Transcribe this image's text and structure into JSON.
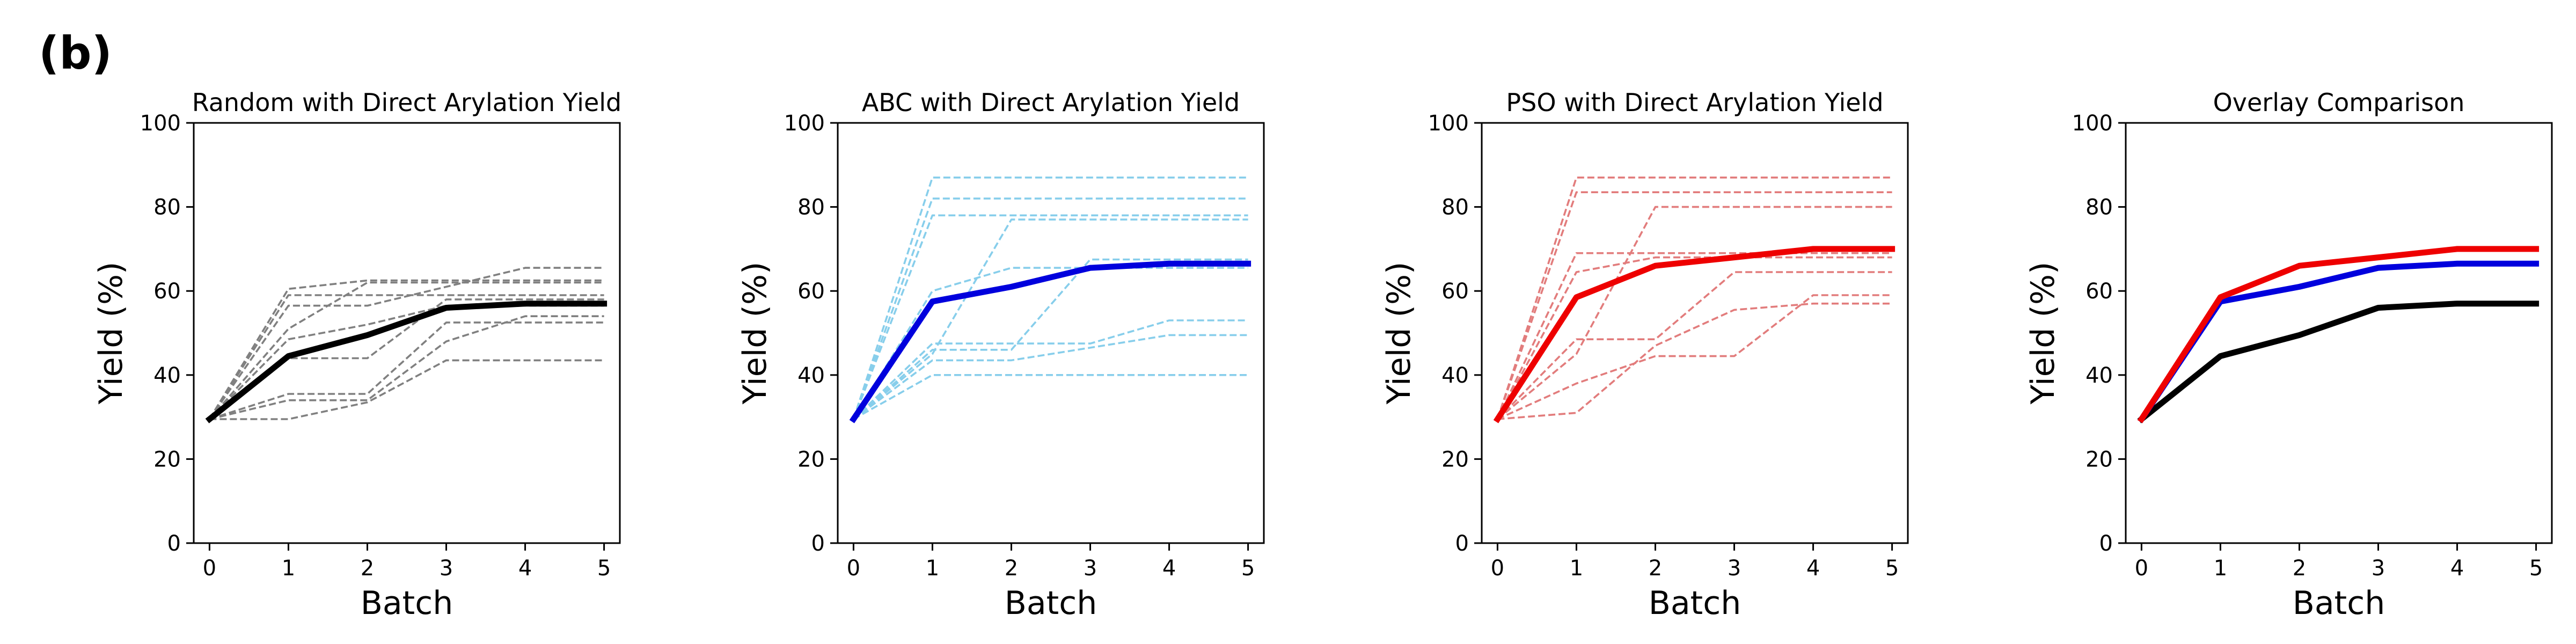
{
  "figure_label": "(b)",
  "chart_data": [
    {
      "type": "line",
      "title": "Random with Direct Arylation Yield",
      "xlabel": "Batch",
      "ylabel": "Yield (%)",
      "xlim": [
        -0.2,
        5.2
      ],
      "ylim": [
        0,
        100
      ],
      "xticks": [
        0,
        1,
        2,
        3,
        4,
        5
      ],
      "yticks": [
        0,
        20,
        40,
        60,
        80,
        100
      ],
      "x": [
        0,
        1,
        2,
        3,
        4,
        5
      ],
      "grid": false,
      "series": [
        {
          "style": "dashed",
          "color": "#808080",
          "values": [
            29.5,
            60.5,
            62.5,
            62.5,
            62.5,
            62.5
          ]
        },
        {
          "style": "dashed",
          "color": "#808080",
          "values": [
            29.5,
            59.0,
            59.0,
            59.0,
            59.0,
            59.0
          ]
        },
        {
          "style": "dashed",
          "color": "#808080",
          "values": [
            29.5,
            56.5,
            56.5,
            61.0,
            65.5,
            65.5
          ]
        },
        {
          "style": "dashed",
          "color": "#808080",
          "values": [
            29.5,
            51.0,
            62.0,
            62.0,
            62.0,
            62.0
          ]
        },
        {
          "style": "dashed",
          "color": "#808080",
          "values": [
            29.5,
            48.5,
            52.0,
            56.5,
            56.5,
            56.5
          ]
        },
        {
          "style": "dashed",
          "color": "#808080",
          "values": [
            29.5,
            44.0,
            44.0,
            58.0,
            58.0,
            58.0
          ]
        },
        {
          "style": "dashed",
          "color": "#808080",
          "values": [
            29.5,
            35.5,
            35.5,
            52.5,
            52.5,
            52.5
          ]
        },
        {
          "style": "dashed",
          "color": "#808080",
          "values": [
            29.5,
            34.0,
            34.0,
            48.0,
            54.0,
            54.0
          ]
        },
        {
          "style": "dashed",
          "color": "#808080",
          "values": [
            29.5,
            29.5,
            33.5,
            43.5,
            43.5,
            43.5
          ]
        },
        {
          "style": "solid",
          "color": "#000000",
          "values": [
            29.5,
            44.5,
            49.5,
            56.0,
            57.0,
            57.0
          ]
        }
      ]
    },
    {
      "type": "line",
      "title": "ABC with Direct Arylation Yield",
      "xlabel": "Batch",
      "ylabel": "Yield (%)",
      "xlim": [
        -0.2,
        5.2
      ],
      "ylim": [
        0,
        100
      ],
      "xticks": [
        0,
        1,
        2,
        3,
        4,
        5
      ],
      "yticks": [
        0,
        20,
        40,
        60,
        80,
        100
      ],
      "x": [
        0,
        1,
        2,
        3,
        4,
        5
      ],
      "grid": false,
      "series": [
        {
          "style": "dashed",
          "color": "#87ceeb",
          "values": [
            29.5,
            87.0,
            87.0,
            87.0,
            87.0,
            87.0
          ]
        },
        {
          "style": "dashed",
          "color": "#87ceeb",
          "values": [
            29.5,
            82.0,
            82.0,
            82.0,
            82.0,
            82.0
          ]
        },
        {
          "style": "dashed",
          "color": "#87ceeb",
          "values": [
            29.5,
            78.0,
            78.0,
            78.0,
            78.0,
            78.0
          ]
        },
        {
          "style": "dashed",
          "color": "#87ceeb",
          "values": [
            29.5,
            45.0,
            77.0,
            77.0,
            77.0,
            77.0
          ]
        },
        {
          "style": "dashed",
          "color": "#87ceeb",
          "values": [
            29.5,
            60.0,
            65.5,
            65.5,
            65.5,
            65.5
          ]
        },
        {
          "style": "dashed",
          "color": "#87ceeb",
          "values": [
            29.5,
            46.0,
            46.0,
            67.5,
            67.5,
            67.5
          ]
        },
        {
          "style": "dashed",
          "color": "#87ceeb",
          "values": [
            29.5,
            47.5,
            47.5,
            47.5,
            53.0,
            53.0
          ]
        },
        {
          "style": "dashed",
          "color": "#87ceeb",
          "values": [
            29.5,
            43.5,
            43.5,
            46.5,
            49.5,
            49.5
          ]
        },
        {
          "style": "dashed",
          "color": "#87ceeb",
          "values": [
            29.5,
            40.0,
            40.0,
            40.0,
            40.0,
            40.0
          ]
        },
        {
          "style": "solid",
          "color": "#0000dd",
          "values": [
            29.5,
            57.5,
            61.0,
            65.5,
            66.5,
            66.5
          ]
        }
      ]
    },
    {
      "type": "line",
      "title": "PSO with Direct Arylation Yield",
      "xlabel": "Batch",
      "ylabel": "Yield (%)",
      "xlim": [
        -0.2,
        5.2
      ],
      "ylim": [
        0,
        100
      ],
      "xticks": [
        0,
        1,
        2,
        3,
        4,
        5
      ],
      "yticks": [
        0,
        20,
        40,
        60,
        80,
        100
      ],
      "x": [
        0,
        1,
        2,
        3,
        4,
        5
      ],
      "grid": false,
      "series": [
        {
          "style": "dashed",
          "color": "#e27c7c",
          "values": [
            29.5,
            87.0,
            87.0,
            87.0,
            87.0,
            87.0
          ]
        },
        {
          "style": "dashed",
          "color": "#e27c7c",
          "values": [
            29.5,
            83.5,
            83.5,
            83.5,
            83.5,
            83.5
          ]
        },
        {
          "style": "dashed",
          "color": "#e27c7c",
          "values": [
            29.5,
            45.0,
            80.0,
            80.0,
            80.0,
            80.0
          ]
        },
        {
          "style": "dashed",
          "color": "#e27c7c",
          "values": [
            29.5,
            69.0,
            69.0,
            69.0,
            69.0,
            69.0
          ]
        },
        {
          "style": "dashed",
          "color": "#e27c7c",
          "values": [
            29.5,
            64.5,
            68.0,
            68.0,
            68.0,
            68.0
          ]
        },
        {
          "style": "dashed",
          "color": "#e27c7c",
          "values": [
            29.5,
            48.5,
            48.5,
            64.5,
            64.5,
            64.5
          ]
        },
        {
          "style": "dashed",
          "color": "#e27c7c",
          "values": [
            29.5,
            38.0,
            44.5,
            44.5,
            59.0,
            59.0
          ]
        },
        {
          "style": "dashed",
          "color": "#e27c7c",
          "values": [
            29.5,
            31.0,
            47.0,
            55.5,
            57.0,
            57.0
          ]
        },
        {
          "style": "solid",
          "color": "#ee0000",
          "values": [
            29.5,
            58.5,
            66.0,
            68.0,
            70.0,
            70.0
          ]
        }
      ]
    },
    {
      "type": "line",
      "title": "Overlay Comparison",
      "xlabel": "Batch",
      "ylabel": "Yield (%)",
      "xlim": [
        -0.2,
        5.2
      ],
      "ylim": [
        0,
        100
      ],
      "xticks": [
        0,
        1,
        2,
        3,
        4,
        5
      ],
      "yticks": [
        0,
        20,
        40,
        60,
        80,
        100
      ],
      "x": [
        0,
        1,
        2,
        3,
        4,
        5
      ],
      "grid": false,
      "series": [
        {
          "style": "solid",
          "color": "#000000",
          "values": [
            29.5,
            44.5,
            49.5,
            56.0,
            57.0,
            57.0
          ]
        },
        {
          "style": "solid",
          "color": "#0000dd",
          "values": [
            29.5,
            57.5,
            61.0,
            65.5,
            66.5,
            66.5
          ]
        },
        {
          "style": "solid",
          "color": "#ee0000",
          "values": [
            29.5,
            58.5,
            66.0,
            68.0,
            70.0,
            70.0
          ]
        }
      ]
    }
  ]
}
